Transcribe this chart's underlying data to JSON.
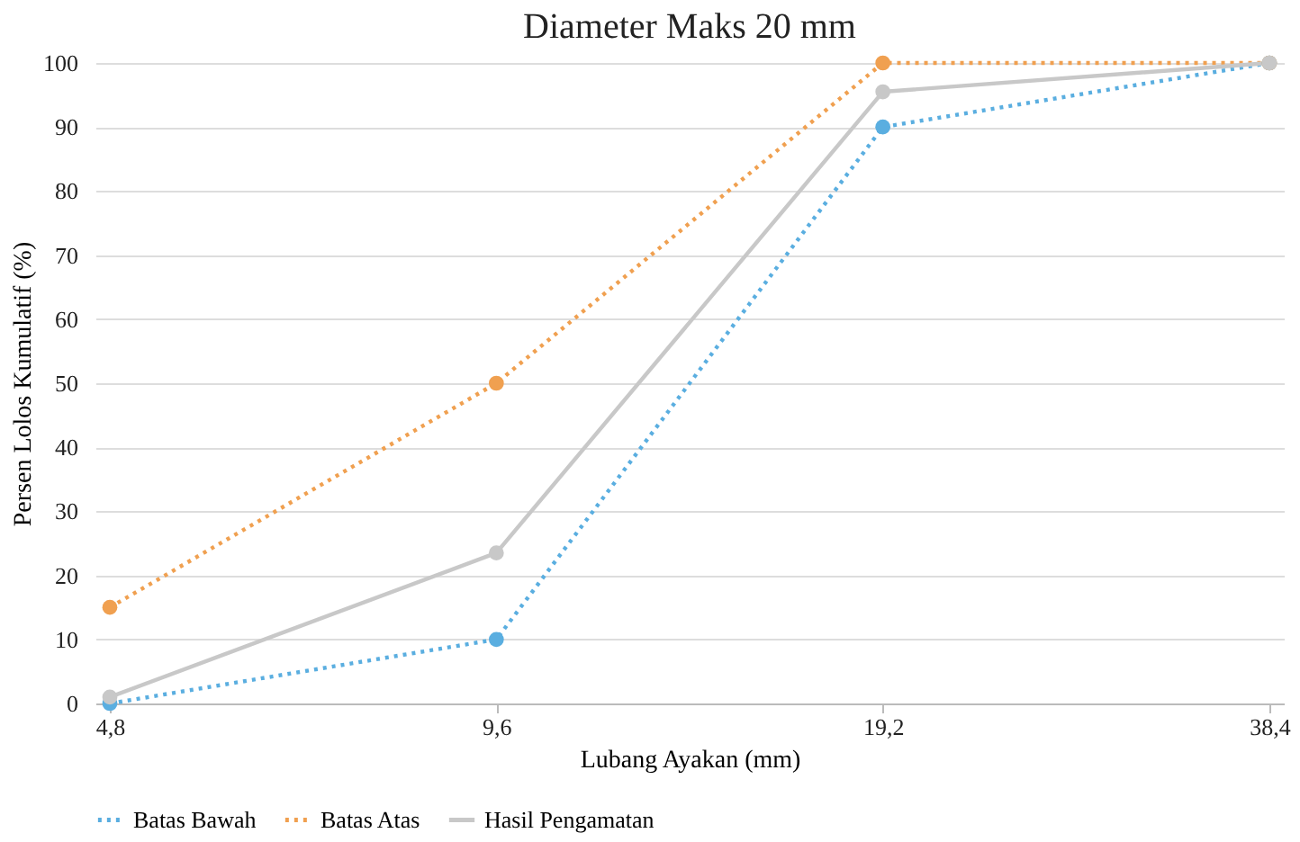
{
  "chart_data": {
    "type": "line",
    "title": "Diameter Maks 20 mm",
    "xlabel": "Lubang Ayakan (mm)",
    "ylabel": "Persen Lolos Kumulatif (%)",
    "categories": [
      "4,8",
      "9,6",
      "19,2",
      "38,4"
    ],
    "series": [
      {
        "name": "Batas Bawah",
        "color": "#5aaee0",
        "line_style": "dotted",
        "values": [
          0,
          10,
          90,
          100
        ]
      },
      {
        "name": "Batas Atas",
        "color": "#f0a050",
        "line_style": "dotted",
        "values": [
          15,
          50,
          100,
          100
        ]
      },
      {
        "name": "Hasil Pengamatan",
        "color": "#c8c8c8",
        "line_style": "solid",
        "values": [
          1,
          23.5,
          95.5,
          100
        ]
      }
    ],
    "ylim": [
      0,
      100
    ],
    "yticks": [
      0,
      10,
      20,
      30,
      40,
      50,
      60,
      70,
      80,
      90,
      100
    ],
    "grid": "y",
    "legend": "bottom",
    "marker": "circle"
  }
}
